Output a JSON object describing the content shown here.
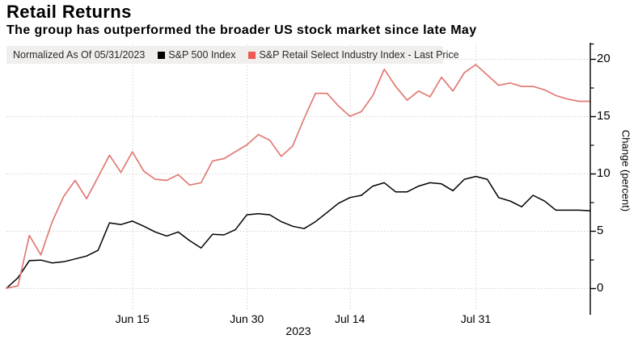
{
  "header": {
    "title": "Retail Returns",
    "subtitle": "The group has outperformed the broader US stock market since late May"
  },
  "legend": {
    "note": "Normalized As Of 05/31/2023",
    "items": [
      {
        "label": "S&P 500 Index",
        "color": "#000000"
      },
      {
        "label": "S&P Retail Select Industry Index - Last Price",
        "color": "#ee5a54"
      }
    ]
  },
  "axes": {
    "y_label": "Change (percent)",
    "y_ticks": [
      0,
      5,
      10,
      15,
      20
    ],
    "y_minor_ticks": [
      2.5,
      7.5,
      12.5,
      17.5
    ],
    "ylim": [
      -1.8,
      21.3
    ],
    "x_ticks": [
      {
        "label": "Jun 15",
        "index": 11
      },
      {
        "label": "Jun 30",
        "index": 21
      },
      {
        "label": "Jul 14",
        "index": 30
      },
      {
        "label": "Jul 31",
        "index": 41
      }
    ],
    "x_year_label": "2023",
    "grid": true,
    "legend_position": "top-inside"
  },
  "chart_data": {
    "type": "line",
    "title": "Retail Returns",
    "ylabel": "Change (percent)",
    "x_dates": [
      "05/31",
      "06/01",
      "06/02",
      "06/05",
      "06/06",
      "06/07",
      "06/08",
      "06/09",
      "06/12",
      "06/13",
      "06/14",
      "06/15",
      "06/16",
      "06/20",
      "06/21",
      "06/22",
      "06/23",
      "06/26",
      "06/27",
      "06/28",
      "06/29",
      "06/30",
      "07/03",
      "07/05",
      "07/06",
      "07/07",
      "07/10",
      "07/11",
      "07/12",
      "07/13",
      "07/14",
      "07/17",
      "07/18",
      "07/19",
      "07/20",
      "07/21",
      "07/24",
      "07/25",
      "07/26",
      "07/27",
      "07/28",
      "07/31",
      "08/01",
      "08/02",
      "08/03",
      "08/04",
      "08/07",
      "08/08",
      "08/09",
      "08/10",
      "08/11",
      "08/14"
    ],
    "series": [
      {
        "name": "S&P 500 Index",
        "color": "#000000",
        "values": [
          0,
          0.9,
          2.4,
          2.45,
          2.2,
          2.3,
          2.55,
          2.8,
          3.3,
          5.7,
          5.55,
          5.85,
          5.4,
          4.9,
          4.55,
          4.9,
          4.15,
          3.5,
          4.7,
          4.65,
          5.1,
          6.4,
          6.5,
          6.4,
          5.8,
          5.4,
          5.2,
          5.8,
          6.6,
          7.4,
          7.9,
          8.1,
          8.9,
          9.2,
          8.4,
          8.4,
          8.9,
          9.2,
          9.1,
          8.5,
          9.5,
          9.75,
          9.5,
          7.9,
          7.6,
          7.1,
          8.1,
          7.6,
          6.8,
          6.8,
          6.8,
          6.75
        ]
      },
      {
        "name": "S&P Retail Select Industry Index - Last Price",
        "color": "#e17a73",
        "values": [
          0,
          0.2,
          4.6,
          2.9,
          5.8,
          8.0,
          9.4,
          7.8,
          9.7,
          11.6,
          10.1,
          11.9,
          10.2,
          9.5,
          9.4,
          9.9,
          9.0,
          9.2,
          11.1,
          11.3,
          11.9,
          12.5,
          13.4,
          12.9,
          11.5,
          12.4,
          14.8,
          17.0,
          17.0,
          15.9,
          15.0,
          15.4,
          16.8,
          19.1,
          17.6,
          16.4,
          17.2,
          16.7,
          18.4,
          17.2,
          18.8,
          19.5,
          18.6,
          17.7,
          17.9,
          17.6,
          17.6,
          17.3,
          16.8,
          16.5,
          16.3,
          16.3
        ]
      }
    ]
  }
}
